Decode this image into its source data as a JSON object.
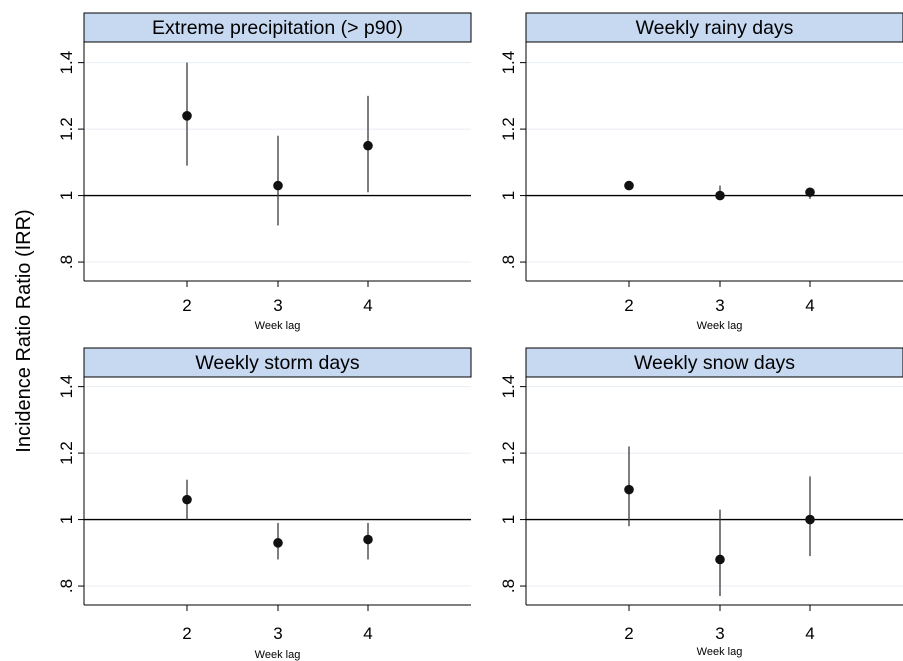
{
  "ylabel": "Incidence Ratio Ratio (IRR)",
  "chart_data": [
    {
      "type": "scatter",
      "title": "Extreme precipitation (> p90)",
      "xlabel": "Week lag",
      "x": [
        "2",
        "3",
        "4"
      ],
      "y": [
        1.24,
        1.03,
        1.15
      ],
      "ci_low": [
        1.09,
        0.91,
        1.01
      ],
      "ci_high": [
        1.4,
        1.18,
        1.3
      ],
      "ylim": [
        0.74,
        1.45
      ],
      "yticks": [
        ".8",
        "1",
        "1.2",
        "1.4"
      ],
      "reference_line": 1
    },
    {
      "type": "scatter",
      "title": "Weekly rainy days",
      "xlabel": "Week lag",
      "x": [
        "2",
        "3",
        "4"
      ],
      "y": [
        1.03,
        1.0,
        1.01
      ],
      "ci_low": [
        1.02,
        0.99,
        0.99
      ],
      "ci_high": [
        1.04,
        1.03,
        1.02
      ],
      "ylim": [
        0.74,
        1.45
      ],
      "yticks": [
        ".8",
        "1",
        "1.2",
        "1.4"
      ],
      "reference_line": 1
    },
    {
      "type": "scatter",
      "title": "Weekly storm days",
      "xlabel": "Week lag",
      "x": [
        "2",
        "3",
        "4"
      ],
      "y": [
        1.06,
        0.93,
        0.94
      ],
      "ci_low": [
        1.0,
        0.88,
        0.88
      ],
      "ci_high": [
        1.12,
        0.99,
        0.99
      ],
      "ylim": [
        0.74,
        1.45
      ],
      "yticks": [
        ".8",
        "1",
        "1.2",
        "1.4"
      ],
      "reference_line": 1
    },
    {
      "type": "scatter",
      "title": "Weekly snow days",
      "xlabel": "Week lag",
      "x": [
        "2",
        "3",
        "4"
      ],
      "y": [
        1.09,
        0.88,
        1.0
      ],
      "ci_low": [
        0.98,
        0.77,
        0.89
      ],
      "ci_high": [
        1.22,
        1.03,
        1.13
      ],
      "ylim": [
        0.74,
        1.45
      ],
      "yticks": [
        ".8",
        "1",
        "1.2",
        "1.4"
      ],
      "reference_line": 1
    }
  ]
}
